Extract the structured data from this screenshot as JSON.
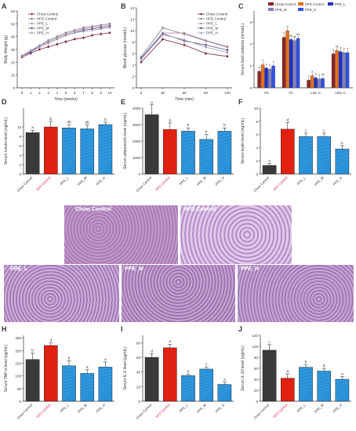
{
  "panels": {
    "A": {
      "letter": "A",
      "type": "line",
      "xlabel": "Time (weeks)",
      "ylabel": "Body Weight (g)",
      "x": [
        0,
        1,
        2,
        3,
        4,
        5,
        6,
        7,
        8,
        9,
        10
      ],
      "xticks": [
        0,
        1,
        2,
        3,
        4,
        5,
        6,
        7,
        8,
        9,
        10
      ],
      "yticks": [
        0,
        10,
        20,
        30,
        40,
        50,
        60
      ],
      "ylim": [
        0,
        60
      ],
      "series": [
        {
          "name": "Chow Control",
          "color": "#7a2040",
          "values": [
            24,
            27,
            30,
            32,
            34,
            36,
            38,
            39,
            41,
            42,
            43
          ]
        },
        {
          "name": "HFD Control",
          "color": "#808080",
          "values": [
            25,
            29,
            33,
            37,
            40,
            43,
            45,
            47,
            48,
            49,
            50
          ]
        },
        {
          "name": "PPE_L",
          "color": "#b08ab0",
          "values": [
            25,
            29,
            33,
            36,
            39,
            42,
            44,
            46,
            47,
            48,
            49
          ]
        },
        {
          "name": "PPE_M",
          "color": "#5a4a8a",
          "values": [
            25,
            28,
            32,
            35,
            38,
            41,
            43,
            45,
            46,
            47,
            48
          ]
        },
        {
          "name": "PPE_H",
          "color": "#9a9ab0",
          "values": [
            25,
            29,
            32,
            35,
            38,
            41,
            43,
            44,
            45,
            46,
            47
          ]
        }
      ]
    },
    "B": {
      "letter": "B",
      "type": "line",
      "xlabel": "Time (min)",
      "ylabel": "Blood glucose (mmol/L)",
      "x": [
        0,
        30,
        60,
        90,
        120
      ],
      "xticks": [
        0,
        30,
        60,
        90,
        120
      ],
      "yticks": [
        0,
        2,
        4,
        6,
        8,
        10,
        12,
        14
      ],
      "ylim": [
        0,
        14
      ],
      "series": [
        {
          "name": "Chow Control",
          "color": "#7a2040",
          "values": [
            4.5,
            8.5,
            7.5,
            6.0,
            5.5
          ]
        },
        {
          "name": "HFD Control",
          "color": "#808080",
          "values": [
            5.4,
            10.5,
            9.4,
            8.2,
            7.1
          ]
        },
        {
          "name": "PPE_L",
          "color": "#b08ab0",
          "values": [
            5.2,
            9.6,
            9.6,
            8.3,
            7.2
          ]
        },
        {
          "name": "PPE_M",
          "color": "#5a4a8a",
          "values": [
            5.2,
            9.5,
            8.2,
            7.5,
            6.6
          ]
        },
        {
          "name": "PPE_H",
          "color": "#9a9ab0",
          "values": [
            5.0,
            9.3,
            8.4,
            7.1,
            6.2
          ]
        }
      ]
    },
    "C": {
      "letter": "C",
      "type": "grouped-bar",
      "ylabel": "Serum lipid contents (mmol/L)",
      "categories": [
        "TG",
        "TC",
        "LDL-C",
        "HDL-C"
      ],
      "yticks": [
        0,
        1,
        2,
        3
      ],
      "ylim": [
        0,
        3.5
      ],
      "series": [
        {
          "name": "Chow Control",
          "color": "#8b2525",
          "values": [
            0.75,
            2.3,
            0.35,
            1.55
          ]
        },
        {
          "name": "HFD Control",
          "color": "#e07020",
          "values": [
            1.05,
            2.6,
            0.55,
            1.7
          ]
        },
        {
          "name": "PPE_L",
          "color": "#2030c0",
          "values": [
            0.9,
            2.2,
            0.45,
            1.65
          ]
        },
        {
          "name": "PPE_M",
          "color": "#8080c0",
          "values": [
            0.85,
            2.15,
            0.4,
            1.6
          ]
        },
        {
          "name": "PPE_H",
          "color": "#3050e0",
          "values": [
            1.0,
            2.25,
            0.42,
            1.6
          ]
        }
      ],
      "sig": [
        [
          "a",
          "b",
          "c",
          "c",
          "c"
        ],
        [
          "b",
          "a",
          "ab",
          "ab",
          "ab"
        ],
        [
          "c",
          "a",
          "b",
          "b",
          "bc"
        ],
        [
          "a",
          "ab",
          "a",
          "b",
          "a"
        ]
      ]
    },
    "D": {
      "letter": "D",
      "ylabel": "Serum insulin level (ng/mL)",
      "yticks": [
        0,
        2,
        4,
        6,
        8,
        10
      ],
      "ylim": [
        0,
        14
      ],
      "categories": [
        "Chow Control",
        "HFD Control",
        "PPE_L",
        "PPE_M",
        "PPE_H"
      ],
      "values": [
        8.8,
        10.0,
        9.8,
        9.6,
        10.5
      ],
      "errors": [
        0.5,
        1.2,
        0.7,
        0.8,
        0.5
      ],
      "sig": [
        "a",
        "b",
        "ab",
        "ab",
        "b"
      ]
    },
    "E": {
      "letter": "E",
      "ylabel": "Serum adiponectin level (ng/mL)",
      "yticks": [
        0,
        1000,
        2000,
        3000,
        4000
      ],
      "ylim": [
        0,
        4000
      ],
      "categories": [
        "Chow Control",
        "HFD Control",
        "PPE_L",
        "PPE_M",
        "PPE_H"
      ],
      "values": [
        3600,
        2700,
        2600,
        2100,
        2600
      ],
      "errors": [
        600,
        400,
        200,
        300,
        200
      ],
      "sig": [
        "a",
        "b",
        "b",
        "b",
        "b"
      ]
    },
    "F": {
      "letter": "F",
      "ylabel": "Serum leptin level (ng/mL)",
      "yticks": [
        0,
        2,
        4,
        6,
        8,
        10
      ],
      "ylim": [
        0,
        10
      ],
      "categories": [
        "Chow Control",
        "HFD Control",
        "PPE_L",
        "PPE_M",
        "PPE_H"
      ],
      "values": [
        1.3,
        6.8,
        5.7,
        5.7,
        3.8
      ],
      "errors": [
        0.3,
        1.0,
        0.5,
        0.5,
        0.5
      ],
      "sig": [
        "a",
        "d",
        "c",
        "c",
        "b"
      ]
    },
    "G": {
      "letter": "G",
      "images": [
        "Chow Control",
        "HFD Control",
        "PPE_L",
        "PPE_M",
        "PPE_H"
      ]
    },
    "H": {
      "letter": "H",
      "ylabel": "Serum TNF-α level (pg/mL)",
      "yticks": [
        0,
        50,
        100,
        150,
        200,
        250
      ],
      "ylim": [
        0,
        260
      ],
      "categories": [
        "Chow Control",
        "HFD Control",
        "PPE_L",
        "PPE_M",
        "PPE_H"
      ],
      "values": [
        165,
        220,
        140,
        110,
        135
      ],
      "errors": [
        25,
        10,
        20,
        15,
        20
      ],
      "sig": [
        "b",
        "d",
        "b",
        "a",
        "a"
      ]
    },
    "I": {
      "letter": "I",
      "ylabel": "Serum IL-6 level (pg/mL)",
      "yticks": [
        0,
        20,
        40,
        60,
        80
      ],
      "ylim": [
        0,
        90
      ],
      "categories": [
        "Chow Control",
        "HFD Control",
        "PPE_L",
        "PPE_M",
        "PPE_H"
      ],
      "values": [
        60,
        73,
        35,
        44,
        23
      ],
      "errors": [
        5,
        5,
        2,
        3,
        3
      ],
      "sig": [
        "d",
        "e",
        "b",
        "c",
        "a"
      ]
    },
    "J": {
      "letter": "J",
      "ylabel": "Serum IL-10 level (pg/mL)",
      "yticks": [
        0,
        20,
        40,
        60,
        80,
        100,
        120
      ],
      "ylim": [
        0,
        120
      ],
      "categories": [
        "Chow Control",
        "HFD Control",
        "PPE_L",
        "PPE_M",
        "PPE_H"
      ],
      "values": [
        93,
        42,
        62,
        55,
        40
      ],
      "errors": [
        10,
        8,
        5,
        5,
        5
      ],
      "sig": [
        "c",
        "a",
        "b",
        "b",
        "a"
      ]
    }
  },
  "bar_styles": {
    "colors": [
      "#3a3a3a",
      "#e02010",
      "#2890d8",
      "#2890d8",
      "#2890d8"
    ]
  },
  "chart_data": [
    {
      "type": "line",
      "title": "A",
      "xlabel": "Time (weeks)",
      "ylabel": "Body Weight (g)"
    },
    {
      "type": "line",
      "title": "B",
      "xlabel": "Time (min)",
      "ylabel": "Blood glucose (mmol/L)"
    },
    {
      "type": "bar",
      "title": "C",
      "ylabel": "Serum lipid contents (mmol/L)"
    },
    {
      "type": "bar",
      "title": "D"
    },
    {
      "type": "bar",
      "title": "E"
    },
    {
      "type": "bar",
      "title": "F"
    },
    {
      "type": "bar",
      "title": "H"
    },
    {
      "type": "bar",
      "title": "I"
    },
    {
      "type": "bar",
      "title": "J"
    }
  ]
}
